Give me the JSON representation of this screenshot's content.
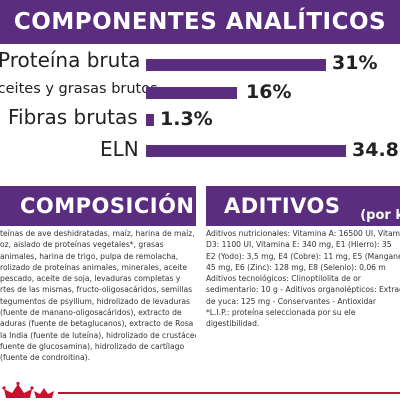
{
  "header": {
    "title": "COMPONENTES ANALÍTICOS"
  },
  "nutrients": [
    {
      "label": "Proteína bruta",
      "value": "31%"
    },
    {
      "label": "Aceites y grasas brutos",
      "value": "16%"
    },
    {
      "label": "Fibras brutas",
      "value": "1.3%"
    },
    {
      "label": "ELN",
      "value": "34.8"
    }
  ],
  "composicion": {
    "title": "COMPOSICIÓN",
    "lines": [
      "teínas de ave deshidratadas, maíz, harina de maíz,",
      "oz, aislado de proteínas vegetales*, grasas",
      "animales, harina de trigo, pulpa de remolacha,",
      "rolizado de proteínas animales, minerales, aceite",
      "pescado, aceite de soja, levaduras completas y",
      "rtes de las mismas, fructo-oligosacáridos, semillas",
      "tegumentos de psyllium, hidrolizado de levaduras",
      "(fuente de manano-oligosacáridos), extracto de",
      "aduras (fuente de betaglucanos), extracto de Rosa",
      "la India (fuente de luteína), hidrolizado de crustáceo",
      "fuente de glucosamina), hidrolizado de cartílago",
      "(fuente de condroitina)."
    ]
  },
  "aditivos": {
    "title": "ADITIVOS",
    "subtitle": "(por k",
    "lines": [
      "Aditivos nutricionales: Vitamina A: 16500 UI, Vitam",
      "D3: 1100 UI, Vitamina E: 340 mg, E1 (Hierro): 35",
      "E2 (Yodo): 3,5 mg, E4 (Cobre): 11 mg, E5 (Mangane",
      "45 mg, E6 (Zinc): 128 mg, E8 (Selenio): 0,06 m",
      "Aditivos tecnológicos: Clinoptilolita de or",
      "sedimentario: 10 g - Aditivos organolépticos: Extrac",
      "de yuca: 125 mg - Conservantes - Antioxidar",
      "*L.I.P.: proteína seleccionada por su ele",
      "digestibilidad."
    ]
  },
  "colors": {
    "purple": "#5a2d7e",
    "red": "#c4122f"
  },
  "icons": [
    "royal-canin-crown-icon"
  ]
}
